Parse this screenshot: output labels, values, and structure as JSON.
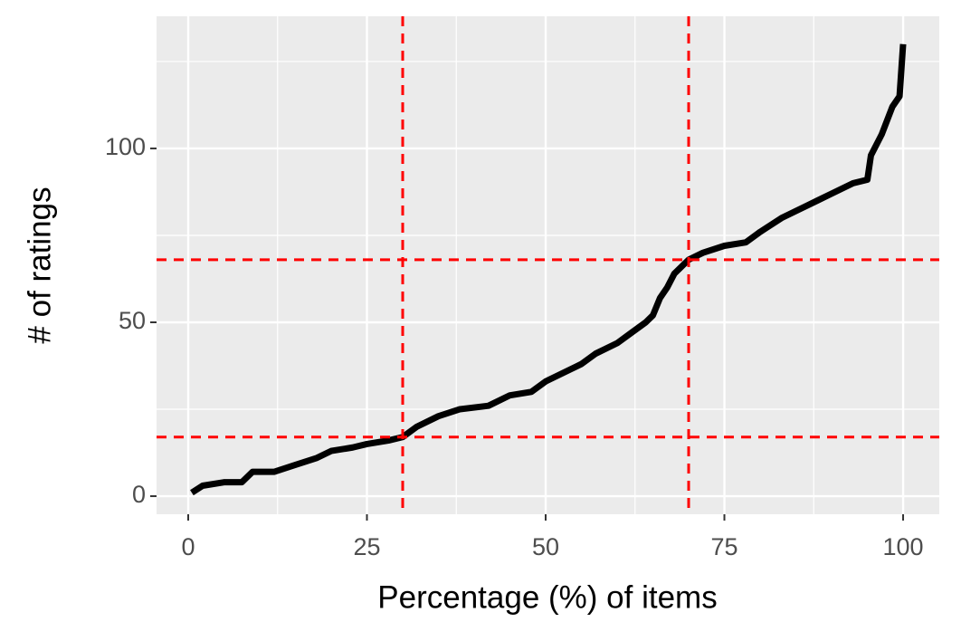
{
  "chart_data": {
    "type": "line",
    "x_label": "Percentage (%) of items",
    "y_label": "# of ratings",
    "x": [
      0.5,
      2,
      5,
      7.5,
      9,
      12,
      15,
      18,
      20,
      23,
      25,
      28,
      30,
      32,
      35,
      38,
      42,
      45,
      48,
      50,
      53,
      55,
      57,
      60,
      62,
      64,
      65,
      66,
      67,
      68,
      70,
      72,
      75,
      78,
      80,
      83,
      86,
      88,
      90,
      93,
      95,
      95.5,
      97,
      98.5,
      99.5,
      100
    ],
    "series": [
      {
        "color": "#000000",
        "values": [
          1,
          3,
          4,
          4,
          7,
          7,
          9,
          11,
          13,
          14,
          15,
          16,
          17,
          20,
          23,
          25,
          26,
          29,
          30,
          33,
          36,
          38,
          41,
          44,
          47,
          50,
          52,
          57,
          60,
          64,
          68,
          70,
          72,
          73,
          76,
          80,
          83,
          85,
          87,
          90,
          91,
          98,
          104,
          112,
          115,
          130
        ]
      }
    ],
    "xlim": [
      -4.43,
      105.06
    ],
    "ylim": [
      -5.2,
      138
    ],
    "xticks": [
      0,
      25,
      50,
      75,
      100
    ],
    "yticks": [
      0,
      50,
      100
    ],
    "xminor": [
      12.5,
      37.5,
      62.5,
      87.5
    ],
    "yminor": [
      25,
      75,
      125
    ],
    "grid": true,
    "reference_lines": {
      "x": [
        30,
        70
      ],
      "y": [
        17,
        68
      ],
      "color": "#ff0000"
    }
  }
}
